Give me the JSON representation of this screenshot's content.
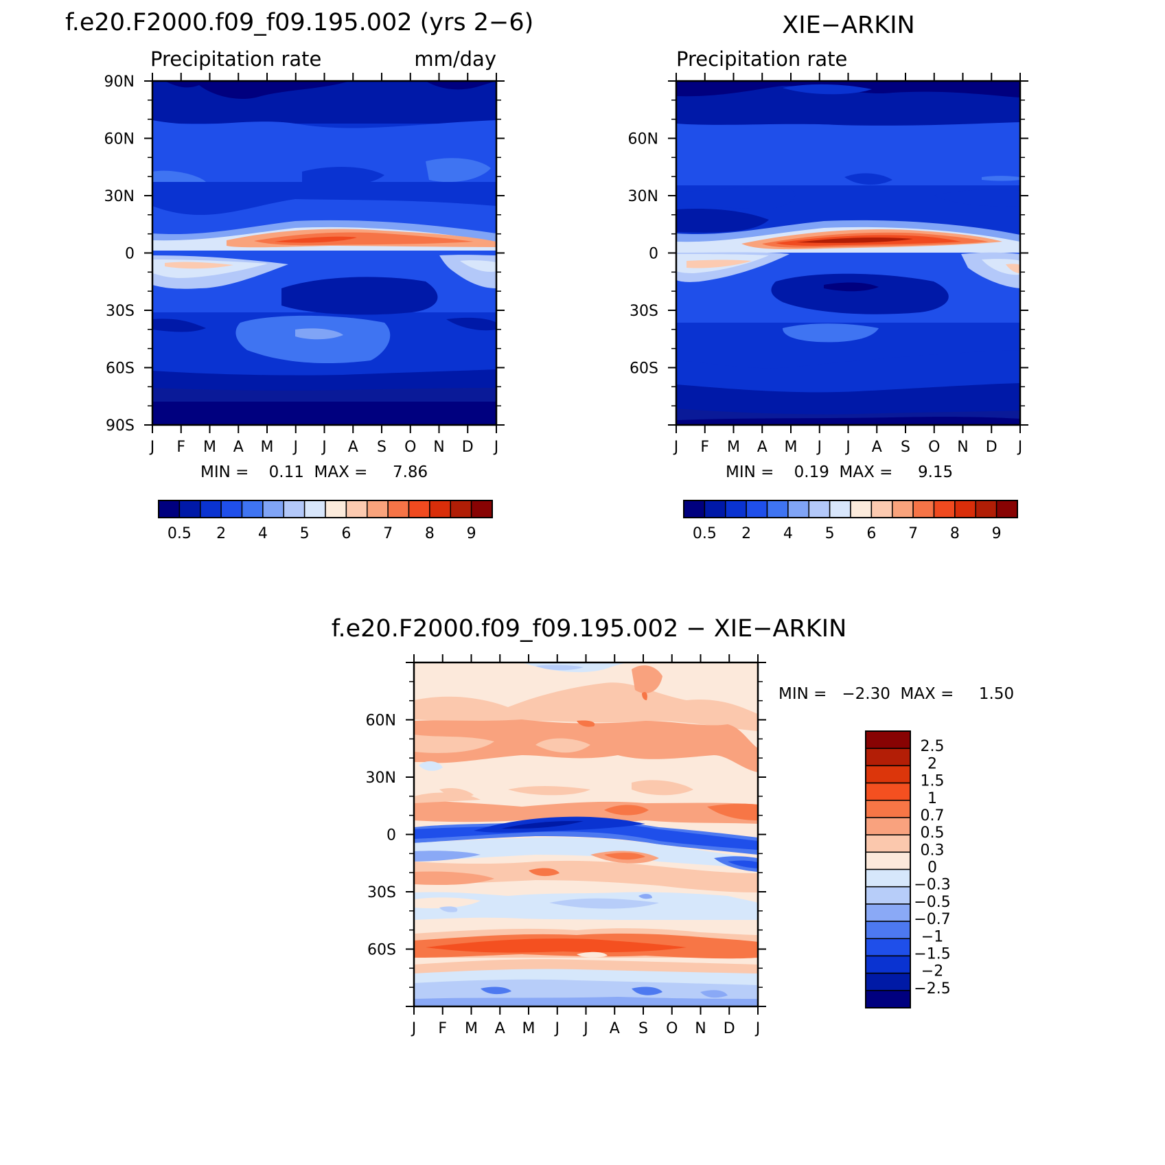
{
  "chart_data": [
    {
      "type": "heatmap",
      "id": "model",
      "title": "f.e20.F2000.f09_f09.195.002 (yrs 2−6)",
      "left_label": "Precipitation rate",
      "right_label": "mm/day",
      "x_ticks": [
        "J",
        "F",
        "M",
        "A",
        "M",
        "J",
        "J",
        "A",
        "S",
        "O",
        "N",
        "D",
        "J"
      ],
      "y_ticks": [
        "90N",
        "60N",
        "30N",
        "0",
        "30S",
        "60S",
        "90S"
      ],
      "y_range": [
        -90,
        90
      ],
      "stats": "MIN =    0.11  MAX =     7.86",
      "colorbar_ticks": [
        "0.5",
        "2",
        "4",
        "5",
        "6",
        "7",
        "8",
        "9"
      ],
      "colorbar_levels": [
        "0.2",
        "0.5",
        "1",
        "2",
        "3",
        "4",
        "5",
        "6",
        "7",
        "8",
        "9",
        "10",
        "12",
        "14",
        "17"
      ]
    },
    {
      "type": "heatmap",
      "id": "obs",
      "title": "XIE−ARKIN",
      "left_label": "Precipitation rate",
      "right_label": "",
      "x_ticks": [
        "J",
        "F",
        "M",
        "A",
        "M",
        "J",
        "J",
        "A",
        "S",
        "O",
        "N",
        "D",
        "J"
      ],
      "y_ticks": [
        "60N",
        "30N",
        "0",
        "30S",
        "60S"
      ],
      "y_range": [
        -90,
        90
      ],
      "stats": "MIN =    0.19  MAX =     9.15",
      "colorbar_ticks": [
        "0.5",
        "2",
        "4",
        "5",
        "6",
        "7",
        "8",
        "9"
      ],
      "colorbar_levels": [
        "0.2",
        "0.5",
        "1",
        "2",
        "3",
        "4",
        "5",
        "6",
        "7",
        "8",
        "9",
        "10",
        "12",
        "14",
        "17"
      ]
    },
    {
      "type": "heatmap",
      "id": "diff",
      "title": "f.e20.F2000.f09_f09.195.002 − XIE−ARKIN",
      "x_ticks": [
        "J",
        "F",
        "M",
        "A",
        "M",
        "J",
        "J",
        "A",
        "S",
        "O",
        "N",
        "D",
        "J"
      ],
      "y_ticks": [
        "60N",
        "30N",
        "0",
        "30S",
        "60S"
      ],
      "y_range": [
        -90,
        90
      ],
      "stats": "MIN =   −2.30  MAX =     1.50",
      "colorbar_ticks": [
        "2.5",
        "2",
        "1.5",
        "1",
        "0.7",
        "0.5",
        "0.3",
        "0",
        "−0.3",
        "−0.5",
        "−0.7",
        "−1",
        "−1.5",
        "−2",
        "−2.5"
      ]
    }
  ],
  "palettes": {
    "abs": [
      "#00007f",
      "#0019a8",
      "#0a33d1",
      "#1f4fea",
      "#3f74f2",
      "#80a4f6",
      "#b3c8f9",
      "#d8e6fb",
      "#fcebdc",
      "#fccab0",
      "#f9a37c",
      "#f67447",
      "#f04a1f",
      "#d92e0a",
      "#b11e06",
      "#880303"
    ],
    "diff": [
      "#880303",
      "#b31e06",
      "#dc360b",
      "#f45020",
      "#f77646",
      "#f9a27e",
      "#fbc8ad",
      "#fce9db",
      "#d6e7fb",
      "#b7cdf9",
      "#8aa9f6",
      "#4d79f0",
      "#1f4fea",
      "#0a33d1",
      "#001aa6",
      "#00007f"
    ]
  }
}
